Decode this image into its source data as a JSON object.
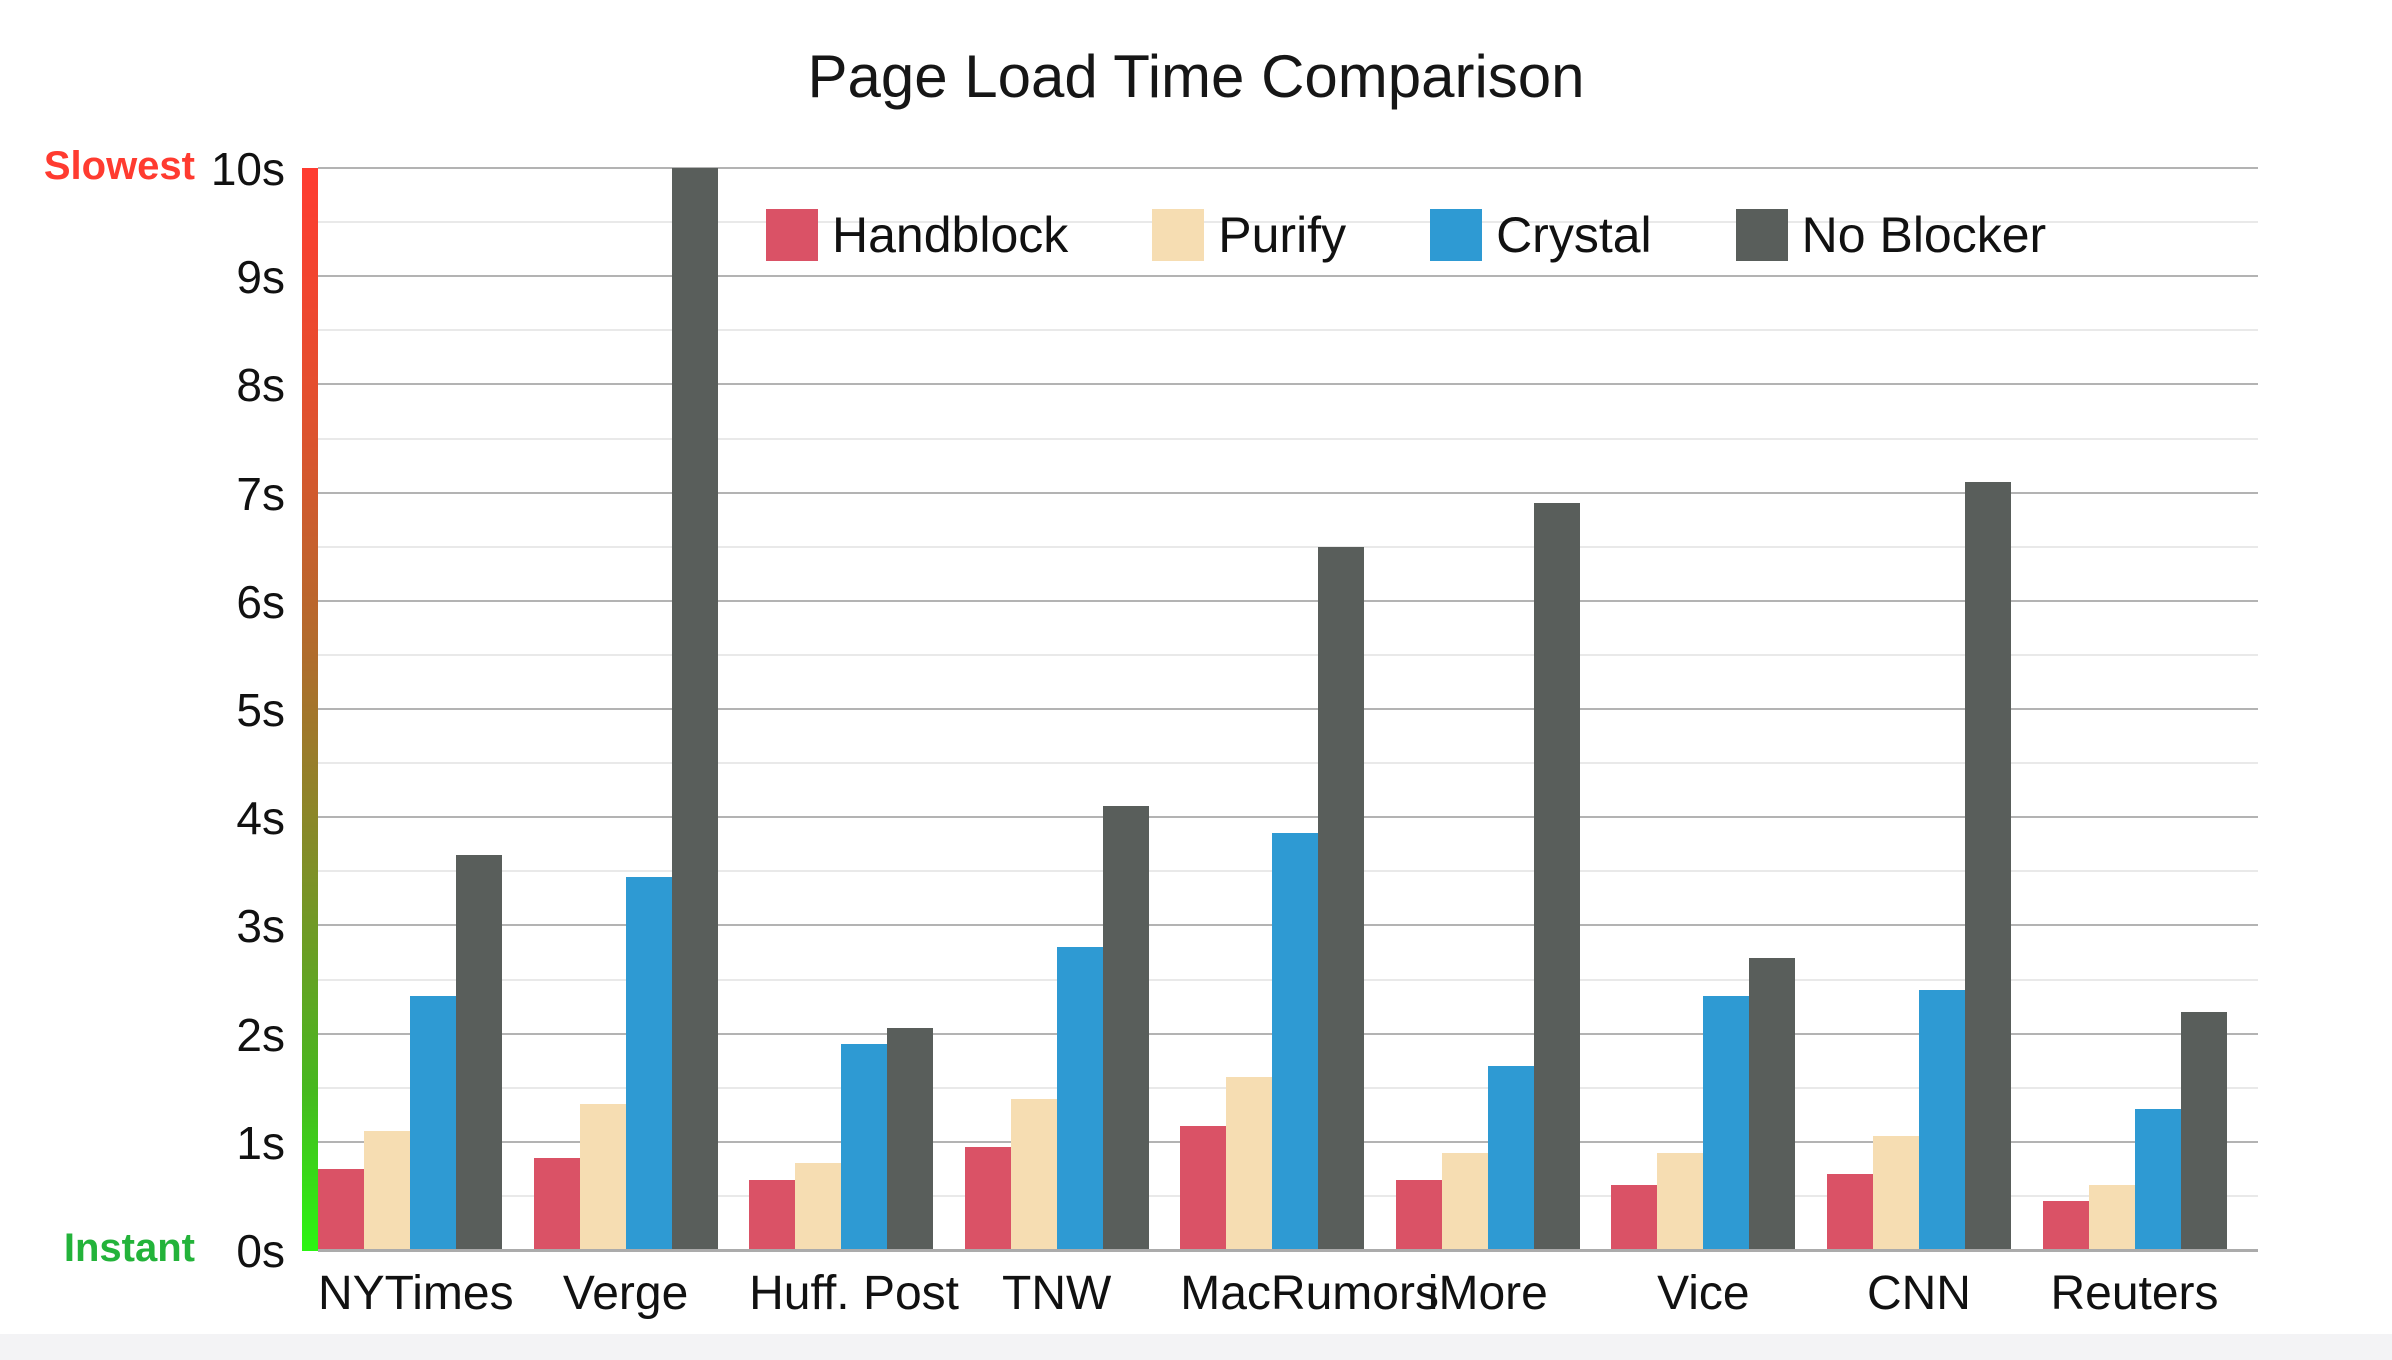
{
  "chart_data": {
    "type": "bar",
    "title": "Page Load Time Comparison",
    "categories": [
      "NYTimes",
      "Verge",
      "Huff. Post",
      "TNW",
      "MacRumors",
      "iMore",
      "Vice",
      "CNN",
      "Reuters"
    ],
    "series": [
      {
        "name": "Handblock",
        "color": "#da5266",
        "values": [
          0.75,
          0.85,
          0.65,
          0.95,
          1.15,
          0.65,
          0.6,
          0.7,
          0.45
        ]
      },
      {
        "name": "Purify",
        "color": "#f6ddb2",
        "values": [
          1.1,
          1.35,
          0.8,
          1.4,
          1.6,
          0.9,
          0.9,
          1.05,
          0.6
        ]
      },
      {
        "name": "Crystal",
        "color": "#2e9ad3",
        "values": [
          2.35,
          3.45,
          1.9,
          2.8,
          3.85,
          1.7,
          2.35,
          2.4,
          1.3
        ]
      },
      {
        "name": "No Blocker",
        "color": "#595e5b",
        "values": [
          3.65,
          10.0,
          2.05,
          4.1,
          6.5,
          6.9,
          2.7,
          7.1,
          2.2
        ]
      }
    ],
    "xlabel": "",
    "ylabel": "",
    "ylim": [
      0,
      10
    ],
    "y_tick_step": 1,
    "y_minor_tick_step": 0.5,
    "y_tick_suffix": "s",
    "y_tick_labels": [
      "0s",
      "1s",
      "2s",
      "3s",
      "4s",
      "5s",
      "6s",
      "7s",
      "8s",
      "9s",
      "10s"
    ],
    "grid": true,
    "legend_position": "top-inside",
    "annotations": {
      "top": {
        "text": "Slowest",
        "color": "#ff3b30"
      },
      "bottom": {
        "text": "Instant",
        "color": "#23b33a"
      }
    },
    "axis_gradient": {
      "top_color": "#ff3b30",
      "bottom_color": "#2bf512"
    }
  }
}
